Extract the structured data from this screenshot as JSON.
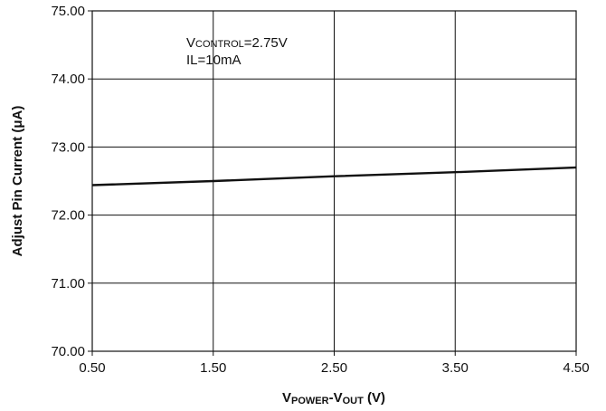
{
  "chart_data": {
    "type": "line",
    "xlabel": {
      "main1": "V",
      "sub1": "POWER",
      "sep": "-V",
      "sub2": "OUT",
      "unit": " (V)"
    },
    "ylabel": "Adjust Pin Current (μA)",
    "xlim": [
      0.5,
      4.5
    ],
    "ylim": [
      70.0,
      75.0
    ],
    "xticks": [
      0.5,
      1.5,
      2.5,
      3.5,
      4.5
    ],
    "xtick_labels": [
      "0.50",
      "1.50",
      "2.50",
      "3.50",
      "4.50"
    ],
    "yticks": [
      70.0,
      71.0,
      72.0,
      73.0,
      74.0,
      75.0
    ],
    "ytick_labels": [
      "70.00",
      "71.00",
      "72.00",
      "73.00",
      "74.00",
      "75.00"
    ],
    "grid": true,
    "annotations": [
      {
        "prefix": "V",
        "small": "CONTROL",
        "suffix": "=2.75V"
      },
      {
        "prefix": "IL=10mA",
        "small": "",
        "suffix": ""
      }
    ],
    "series": [
      {
        "x": [
          0.5,
          1.5,
          2.5,
          3.5,
          4.5
        ],
        "values": [
          72.44,
          72.5,
          72.57,
          72.63,
          72.7
        ],
        "color": "#111111"
      }
    ]
  }
}
